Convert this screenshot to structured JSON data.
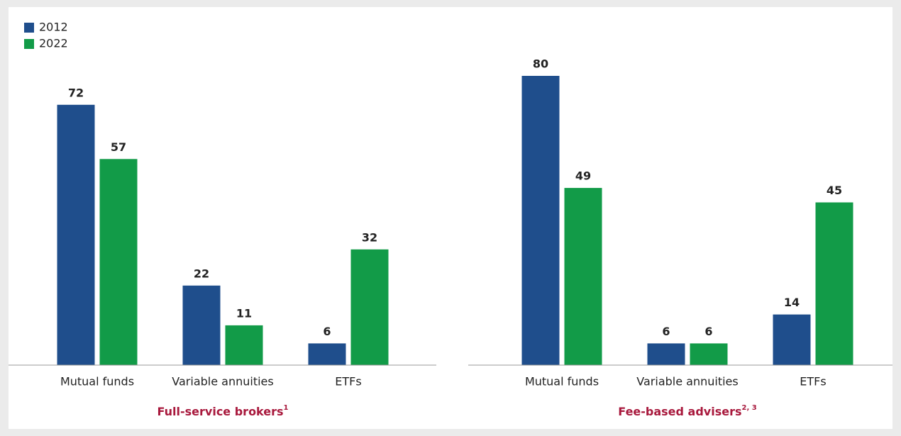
{
  "chart_data": [
    {
      "type": "bar",
      "title": "Full-service brokers",
      "title_note": "1",
      "categories": [
        "Mutual funds",
        "Variable annuities",
        "ETFs"
      ],
      "series": [
        {
          "name": "2012",
          "color": "#1f4e8c",
          "values": [
            72,
            22,
            6
          ]
        },
        {
          "name": "2022",
          "color": "#129b48",
          "values": [
            57,
            11,
            32
          ]
        }
      ],
      "legend": "top-left"
    },
    {
      "type": "bar",
      "title": "Fee-based advisers",
      "title_note": "2, 3",
      "categories": [
        "Mutual funds",
        "Variable annuities",
        "ETFs"
      ],
      "series": [
        {
          "name": "2012",
          "color": "#1f4e8c",
          "values": [
            80,
            6,
            14
          ]
        },
        {
          "name": "2022",
          "color": "#129b48",
          "values": [
            49,
            6,
            45
          ]
        }
      ]
    }
  ]
}
